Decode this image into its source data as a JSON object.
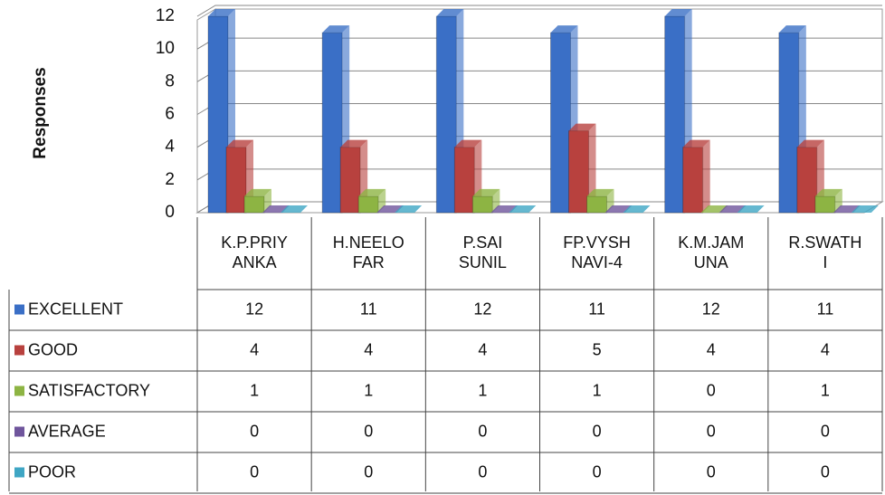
{
  "chart_data": {
    "type": "bar3d",
    "y_label": "Responses",
    "categories": [
      "K.P.PRIY\nANKA",
      "H.NEELO\nFAR",
      "P.SAI\nSUNIL",
      "FP.VYSH\nNAVI-4",
      "K.M.JAM\nUNA",
      "R.SWATH\nI"
    ],
    "series": [
      {
        "name": "EXCELLENT",
        "color": "#3a6fc6",
        "values": [
          12,
          11,
          12,
          11,
          12,
          11
        ]
      },
      {
        "name": "GOOD",
        "color": "#b8413e",
        "values": [
          4,
          4,
          4,
          5,
          4,
          4
        ]
      },
      {
        "name": "SATISFACTORY",
        "color": "#8db443",
        "values": [
          1,
          1,
          1,
          1,
          0,
          1
        ]
      },
      {
        "name": "AVERAGE",
        "color": "#6f559c",
        "values": [
          0,
          0,
          0,
          0,
          0,
          0
        ]
      },
      {
        "name": "POOR",
        "color": "#3fa6c4",
        "values": [
          0,
          0,
          0,
          0,
          0,
          0
        ]
      }
    ],
    "ylim": [
      0,
      12
    ],
    "yticks": [
      0,
      2,
      4,
      6,
      8,
      10,
      12
    ],
    "grid": true
  }
}
